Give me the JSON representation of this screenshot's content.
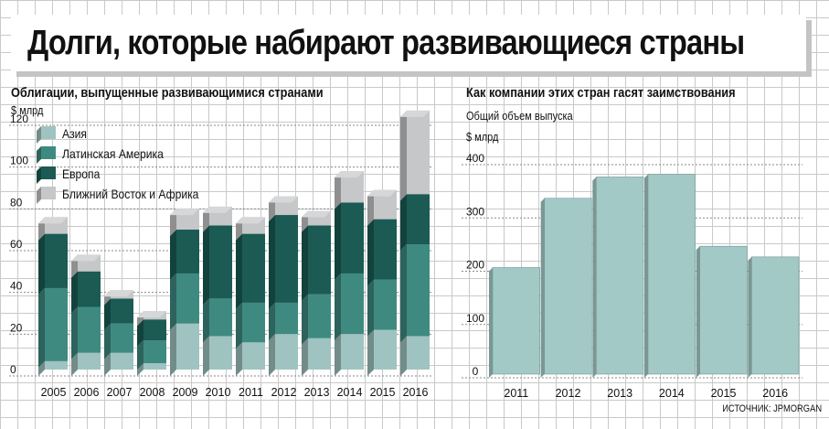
{
  "headline": "Долги, которые набирают развивающиеся страны",
  "source": "ИСТОЧНИК: JPMORGAN",
  "colors": {
    "asia": "#9fc3c0",
    "latam": "#3f8a80",
    "europe": "#1b5b54",
    "mideast": "#c6c7c8",
    "issuance": "#a3c9c6"
  },
  "chart_data": [
    {
      "type": "bar",
      "stacked": true,
      "title": "Облигации, выпущенные развивающимися странами",
      "ylabel": "$ млрд",
      "ylim": [
        0,
        120
      ],
      "yticks": [
        0,
        20,
        40,
        60,
        80,
        100,
        120
      ],
      "categories": [
        "2005",
        "2006",
        "2007",
        "2008",
        "2009",
        "2010",
        "2011",
        "2012",
        "2013",
        "2014",
        "2015",
        "2016"
      ],
      "legend_position": "top-left",
      "series": [
        {
          "name": "Азия",
          "values": [
            4,
            8,
            8,
            3,
            22,
            16,
            13,
            17,
            15,
            17,
            19,
            16
          ]
        },
        {
          "name": "Латинская Америка",
          "values": [
            35,
            22,
            14,
            11,
            24,
            18,
            19,
            15,
            21,
            29,
            24,
            44
          ]
        },
        {
          "name": "Европа",
          "values": [
            26,
            17,
            12,
            10,
            21,
            35,
            33,
            42,
            33,
            34,
            29,
            24
          ]
        },
        {
          "name": "Ближний Восток и Африка",
          "values": [
            8,
            8,
            4,
            4,
            10,
            9,
            8,
            9,
            7,
            15,
            14,
            40
          ]
        }
      ]
    },
    {
      "type": "bar",
      "title": "Как компании этих стран гасят заимствования",
      "subtitle": "Общий объем выпуска",
      "ylabel": "$ млрд",
      "ylim": [
        0,
        400
      ],
      "yticks": [
        0,
        100,
        200,
        300,
        400
      ],
      "categories": [
        "2011",
        "2012",
        "2013",
        "2014",
        "2015",
        "2016"
      ],
      "values": [
        200,
        330,
        370,
        375,
        240,
        220
      ]
    }
  ]
}
